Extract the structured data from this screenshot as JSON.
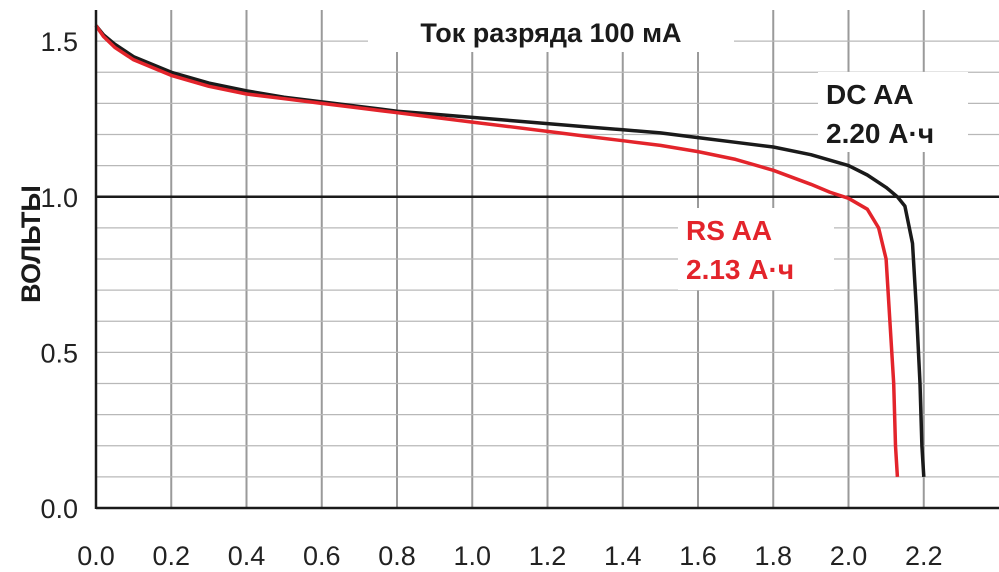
{
  "chart_data": {
    "type": "line",
    "title": "Ток разряда 100 мА",
    "xlabel": "",
    "ylabel": "ВОЛЬТЫ",
    "xlim": [
      0.0,
      2.4
    ],
    "ylim": [
      0.0,
      1.6
    ],
    "x_ticks": [
      "0.0",
      "0.2",
      "0.4",
      "0.6",
      "0.8",
      "1.0",
      "1.2",
      "1.4",
      "1.6",
      "1.8",
      "2.0",
      "2.2"
    ],
    "y_ticks": [
      {
        "value": 0.0,
        "label": "0.0"
      },
      {
        "value": 0.5,
        "label": "0.5"
      },
      {
        "value": 1.0,
        "label": "1.0"
      },
      {
        "value": 1.5,
        "label": "1.5"
      }
    ],
    "grid": true,
    "reference_line_y": 1.0,
    "series": [
      {
        "name": "DC AA",
        "capacity_label": "2.20 А·ч",
        "color": "#1a1a1a",
        "x": [
          0.0,
          0.02,
          0.05,
          0.1,
          0.2,
          0.3,
          0.4,
          0.5,
          0.6,
          0.7,
          0.8,
          0.9,
          1.0,
          1.1,
          1.2,
          1.3,
          1.4,
          1.5,
          1.6,
          1.7,
          1.8,
          1.9,
          2.0,
          2.05,
          2.1,
          2.13,
          2.15,
          2.17,
          2.18,
          2.19,
          2.195,
          2.2
        ],
        "y": [
          1.55,
          1.52,
          1.49,
          1.45,
          1.4,
          1.365,
          1.34,
          1.32,
          1.305,
          1.29,
          1.275,
          1.265,
          1.255,
          1.245,
          1.235,
          1.225,
          1.215,
          1.205,
          1.19,
          1.175,
          1.16,
          1.135,
          1.1,
          1.07,
          1.03,
          1.0,
          0.97,
          0.85,
          0.65,
          0.4,
          0.2,
          0.1
        ]
      },
      {
        "name": "RS AA",
        "capacity_label": "2.13 А·ч",
        "color": "#e3242b",
        "x": [
          0.0,
          0.02,
          0.05,
          0.1,
          0.2,
          0.3,
          0.4,
          0.5,
          0.6,
          0.7,
          0.8,
          0.9,
          1.0,
          1.1,
          1.2,
          1.3,
          1.4,
          1.5,
          1.6,
          1.7,
          1.8,
          1.9,
          1.95,
          2.0,
          2.05,
          2.08,
          2.1,
          2.11,
          2.12,
          2.125,
          2.13
        ],
        "y": [
          1.55,
          1.515,
          1.48,
          1.44,
          1.39,
          1.355,
          1.33,
          1.315,
          1.3,
          1.285,
          1.27,
          1.255,
          1.24,
          1.225,
          1.21,
          1.195,
          1.18,
          1.165,
          1.145,
          1.12,
          1.085,
          1.04,
          1.015,
          0.995,
          0.96,
          0.9,
          0.8,
          0.6,
          0.4,
          0.2,
          0.1
        ]
      }
    ]
  }
}
